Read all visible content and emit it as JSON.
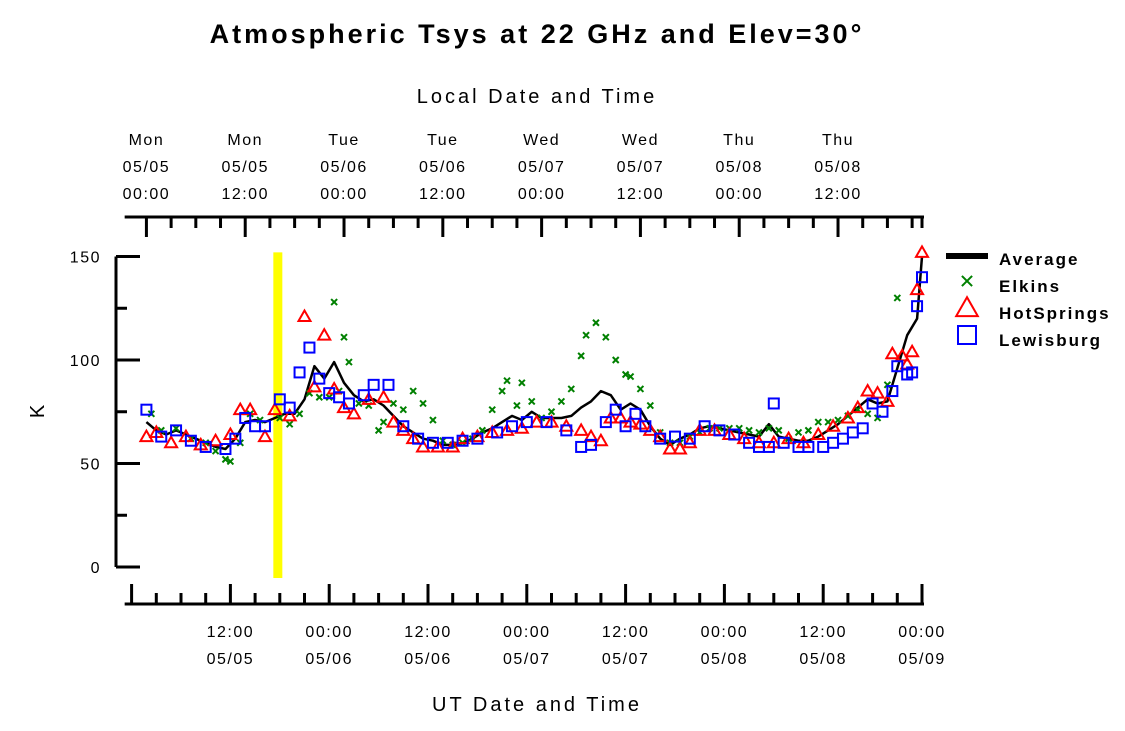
{
  "chart_data": {
    "type": "scatter",
    "title": "Atmospheric Tsys at 22 GHz and Elev=30°",
    "top_axis_label": "Local Date and Time",
    "xlabel": "UT Date and Time",
    "ylabel": "K",
    "ylim": [
      0,
      150
    ],
    "xlim": [
      -16.1,
      0
    ],
    "x_units": "hours relative to 05/09 00:00 UT",
    "y_ticks": [
      "0",
      "50",
      "100",
      "150"
    ],
    "bottom_ticks": [
      {
        "x": -14,
        "line1": "12:00",
        "line2": "05/05"
      },
      {
        "x": -12,
        "line1": "00:00",
        "line2": "05/06"
      },
      {
        "x": -10,
        "line1": "12:00",
        "line2": "05/06"
      },
      {
        "x": -8,
        "line1": "00:00",
        "line2": "05/07"
      },
      {
        "x": -6,
        "line1": "12:00",
        "line2": "05/07"
      },
      {
        "x": -4,
        "line1": "00:00",
        "line2": "05/08"
      },
      {
        "x": -2,
        "line1": "12:00",
        "line2": "05/08"
      },
      {
        "x": 0,
        "line1": "00:00",
        "line2": "05/09"
      }
    ],
    "top_ticks": [
      {
        "x": -15.7,
        "line1": "Mon",
        "line2": "05/05",
        "line3": "00:00"
      },
      {
        "x": -13.7,
        "line1": "Mon",
        "line2": "05/05",
        "line3": "12:00"
      },
      {
        "x": -11.7,
        "line1": "Tue",
        "line2": "05/06",
        "line3": "00:00"
      },
      {
        "x": -9.7,
        "line1": "Tue",
        "line2": "05/06",
        "line3": "12:00"
      },
      {
        "x": -7.7,
        "line1": "Wed",
        "line2": "05/07",
        "line3": "00:00"
      },
      {
        "x": -5.7,
        "line1": "Wed",
        "line2": "05/07",
        "line3": "12:00"
      },
      {
        "x": -3.7,
        "line1": "Thu",
        "line2": "05/08",
        "line3": "00:00"
      },
      {
        "x": -1.7,
        "line1": "Thu",
        "line2": "05/08",
        "line3": "12:00"
      }
    ],
    "highlight_x": -13.05,
    "highlight_color": "#ffff00",
    "legend_placement": "right",
    "series": [
      {
        "name": "Average",
        "marker": "line",
        "color": "#000000",
        "points": [
          [
            -15.7,
            70
          ],
          [
            -15.5,
            66
          ],
          [
            -15.3,
            64
          ],
          [
            -15.1,
            66
          ],
          [
            -14.9,
            64
          ],
          [
            -14.7,
            62
          ],
          [
            -14.5,
            60
          ],
          [
            -14.3,
            58
          ],
          [
            -14.1,
            57
          ],
          [
            -13.9,
            62
          ],
          [
            -13.7,
            70
          ],
          [
            -13.5,
            71
          ],
          [
            -13.3,
            70
          ],
          [
            -13.1,
            72
          ],
          [
            -12.9,
            74
          ],
          [
            -12.7,
            74
          ],
          [
            -12.5,
            81
          ],
          [
            -12.3,
            97
          ],
          [
            -12.1,
            91
          ],
          [
            -11.9,
            99
          ],
          [
            -11.7,
            89
          ],
          [
            -11.5,
            83
          ],
          [
            -11.3,
            80
          ],
          [
            -11.1,
            81
          ],
          [
            -10.9,
            78
          ],
          [
            -10.7,
            73
          ],
          [
            -10.5,
            68
          ],
          [
            -10.3,
            65
          ],
          [
            -10.1,
            62
          ],
          [
            -9.9,
            61
          ],
          [
            -9.7,
            59
          ],
          [
            -9.5,
            59
          ],
          [
            -9.3,
            60
          ],
          [
            -9.1,
            62
          ],
          [
            -8.9,
            65
          ],
          [
            -8.7,
            67
          ],
          [
            -8.5,
            70
          ],
          [
            -8.3,
            73
          ],
          [
            -8.1,
            71
          ],
          [
            -7.9,
            75
          ],
          [
            -7.7,
            72
          ],
          [
            -7.5,
            72
          ],
          [
            -7.3,
            72
          ],
          [
            -7.1,
            73
          ],
          [
            -6.9,
            77
          ],
          [
            -6.7,
            80
          ],
          [
            -6.5,
            85
          ],
          [
            -6.3,
            83
          ],
          [
            -6.1,
            76
          ],
          [
            -5.9,
            79
          ],
          [
            -5.7,
            76
          ],
          [
            -5.5,
            68
          ],
          [
            -5.3,
            62
          ],
          [
            -5.1,
            59
          ],
          [
            -4.9,
            62
          ],
          [
            -4.7,
            64
          ],
          [
            -4.5,
            67
          ],
          [
            -4.3,
            68
          ],
          [
            -4.1,
            67
          ],
          [
            -3.9,
            66
          ],
          [
            -3.7,
            65
          ],
          [
            -3.5,
            64
          ],
          [
            -3.3,
            63
          ],
          [
            -3.1,
            69
          ],
          [
            -2.9,
            63
          ],
          [
            -2.7,
            62
          ],
          [
            -2.5,
            61
          ],
          [
            -2.3,
            61
          ],
          [
            -2.1,
            63
          ],
          [
            -1.9,
            66
          ],
          [
            -1.7,
            69
          ],
          [
            -1.5,
            73
          ],
          [
            -1.3,
            77
          ],
          [
            -1.1,
            81
          ],
          [
            -0.9,
            79
          ],
          [
            -0.7,
            80
          ],
          [
            -0.5,
            96
          ],
          [
            -0.3,
            112
          ],
          [
            -0.1,
            120
          ],
          [
            0,
            150
          ]
        ]
      },
      {
        "name": "Elkins",
        "marker": "x",
        "color": "#008000",
        "points": [
          [
            -15.6,
            74
          ],
          [
            -15.4,
            66
          ],
          [
            -15.1,
            67
          ],
          [
            -14.8,
            62
          ],
          [
            -14.5,
            60
          ],
          [
            -14.3,
            56
          ],
          [
            -14.1,
            52
          ],
          [
            -14.0,
            51
          ],
          [
            -13.8,
            60
          ],
          [
            -13.6,
            74
          ],
          [
            -13.4,
            71
          ],
          [
            -13.0,
            72
          ],
          [
            -12.8,
            69
          ],
          [
            -12.6,
            74
          ],
          [
            -12.4,
            84
          ],
          [
            -12.2,
            82
          ],
          [
            -12.0,
            82
          ],
          [
            -11.9,
            128
          ],
          [
            -11.8,
            85
          ],
          [
            -11.7,
            111
          ],
          [
            -11.6,
            99
          ],
          [
            -11.4,
            79
          ],
          [
            -11.2,
            78
          ],
          [
            -11.0,
            66
          ],
          [
            -10.9,
            70
          ],
          [
            -10.7,
            79
          ],
          [
            -10.5,
            76
          ],
          [
            -10.3,
            85
          ],
          [
            -10.1,
            79
          ],
          [
            -9.9,
            71
          ],
          [
            -9.7,
            61
          ],
          [
            -9.5,
            59
          ],
          [
            -9.3,
            60
          ],
          [
            -9.1,
            62
          ],
          [
            -8.9,
            66
          ],
          [
            -8.7,
            76
          ],
          [
            -8.5,
            85
          ],
          [
            -8.4,
            90
          ],
          [
            -8.2,
            78
          ],
          [
            -8.1,
            89
          ],
          [
            -7.9,
            80
          ],
          [
            -7.7,
            72
          ],
          [
            -7.5,
            75
          ],
          [
            -7.3,
            80
          ],
          [
            -7.1,
            86
          ],
          [
            -6.9,
            102
          ],
          [
            -6.8,
            112
          ],
          [
            -6.6,
            118
          ],
          [
            -6.4,
            111
          ],
          [
            -6.2,
            100
          ],
          [
            -6.0,
            93
          ],
          [
            -5.9,
            92
          ],
          [
            -5.7,
            86
          ],
          [
            -5.5,
            78
          ],
          [
            -5.3,
            65
          ],
          [
            -5.1,
            60
          ],
          [
            -4.9,
            60
          ],
          [
            -4.7,
            63
          ],
          [
            -4.5,
            65
          ],
          [
            -4.3,
            67
          ],
          [
            -4.1,
            67
          ],
          [
            -3.9,
            67
          ],
          [
            -3.7,
            67
          ],
          [
            -3.5,
            66
          ],
          [
            -3.3,
            65
          ],
          [
            -3.1,
            67
          ],
          [
            -2.9,
            66
          ],
          [
            -2.7,
            62
          ],
          [
            -2.5,
            65
          ],
          [
            -2.3,
            66
          ],
          [
            -2.1,
            70
          ],
          [
            -1.9,
            70
          ],
          [
            -1.7,
            71
          ],
          [
            -1.5,
            73
          ],
          [
            -1.3,
            76
          ],
          [
            -1.1,
            74
          ],
          [
            -0.9,
            72
          ],
          [
            -0.7,
            88
          ],
          [
            -0.5,
            130
          ]
        ]
      },
      {
        "name": "HotSprings",
        "marker": "triangle",
        "color": "#ff0000",
        "points": [
          [
            -15.7,
            63
          ],
          [
            -15.5,
            65
          ],
          [
            -15.2,
            60
          ],
          [
            -14.9,
            63
          ],
          [
            -14.6,
            59
          ],
          [
            -14.3,
            61
          ],
          [
            -14.0,
            64
          ],
          [
            -13.8,
            76
          ],
          [
            -13.6,
            76
          ],
          [
            -13.3,
            63
          ],
          [
            -13.1,
            76
          ],
          [
            -12.8,
            73
          ],
          [
            -12.5,
            121
          ],
          [
            -12.3,
            87
          ],
          [
            -12.1,
            112
          ],
          [
            -11.9,
            86
          ],
          [
            -11.7,
            77
          ],
          [
            -11.5,
            74
          ],
          [
            -11.2,
            81
          ],
          [
            -10.9,
            82
          ],
          [
            -10.7,
            70
          ],
          [
            -10.5,
            66
          ],
          [
            -10.3,
            62
          ],
          [
            -10.1,
            58
          ],
          [
            -9.8,
            58
          ],
          [
            -9.5,
            58
          ],
          [
            -9.3,
            62
          ],
          [
            -9.0,
            63
          ],
          [
            -8.7,
            65
          ],
          [
            -8.4,
            66
          ],
          [
            -8.1,
            67
          ],
          [
            -7.8,
            70
          ],
          [
            -7.5,
            70
          ],
          [
            -7.2,
            68
          ],
          [
            -6.9,
            66
          ],
          [
            -6.7,
            63
          ],
          [
            -6.5,
            61
          ],
          [
            -6.3,
            72
          ],
          [
            -6.1,
            72
          ],
          [
            -5.9,
            70
          ],
          [
            -5.7,
            69
          ],
          [
            -5.5,
            66
          ],
          [
            -5.3,
            63
          ],
          [
            -5.1,
            57
          ],
          [
            -4.9,
            57
          ],
          [
            -4.7,
            60
          ],
          [
            -4.5,
            66
          ],
          [
            -4.2,
            66
          ],
          [
            -3.9,
            64
          ],
          [
            -3.6,
            62
          ],
          [
            -3.3,
            60
          ],
          [
            -3.0,
            60
          ],
          [
            -2.7,
            62
          ],
          [
            -2.4,
            60
          ],
          [
            -2.1,
            64
          ],
          [
            -1.8,
            68
          ],
          [
            -1.5,
            72
          ],
          [
            -1.3,
            77
          ],
          [
            -1.1,
            85
          ],
          [
            -0.9,
            84
          ],
          [
            -0.7,
            80
          ],
          [
            -0.6,
            103
          ],
          [
            -0.4,
            102
          ],
          [
            -0.3,
            98
          ],
          [
            -0.2,
            104
          ],
          [
            -0.1,
            134
          ],
          [
            0.0,
            152
          ]
        ]
      },
      {
        "name": "Lewisburg",
        "marker": "square",
        "color": "#0000ff",
        "points": [
          [
            -15.7,
            76
          ],
          [
            -15.4,
            63
          ],
          [
            -15.1,
            66
          ],
          [
            -14.8,
            61
          ],
          [
            -14.5,
            58
          ],
          [
            -14.1,
            57
          ],
          [
            -13.9,
            62
          ],
          [
            -13.7,
            72
          ],
          [
            -13.5,
            68
          ],
          [
            -13.3,
            68
          ],
          [
            -13.0,
            81
          ],
          [
            -12.8,
            77
          ],
          [
            -12.6,
            94
          ],
          [
            -12.4,
            106
          ],
          [
            -12.2,
            91
          ],
          [
            -12.0,
            84
          ],
          [
            -11.8,
            82
          ],
          [
            -11.6,
            79
          ],
          [
            -11.3,
            83
          ],
          [
            -11.1,
            88
          ],
          [
            -10.8,
            88
          ],
          [
            -10.5,
            68
          ],
          [
            -10.2,
            62
          ],
          [
            -9.9,
            60
          ],
          [
            -9.6,
            60
          ],
          [
            -9.3,
            61
          ],
          [
            -9.0,
            62
          ],
          [
            -8.6,
            65
          ],
          [
            -8.3,
            68
          ],
          [
            -8.0,
            70
          ],
          [
            -7.6,
            70
          ],
          [
            -7.2,
            66
          ],
          [
            -6.9,
            58
          ],
          [
            -6.7,
            59
          ],
          [
            -6.4,
            70
          ],
          [
            -6.2,
            76
          ],
          [
            -6.0,
            68
          ],
          [
            -5.8,
            74
          ],
          [
            -5.6,
            68
          ],
          [
            -5.3,
            62
          ],
          [
            -5.0,
            63
          ],
          [
            -4.7,
            62
          ],
          [
            -4.4,
            68
          ],
          [
            -4.1,
            66
          ],
          [
            -3.8,
            64
          ],
          [
            -3.5,
            60
          ],
          [
            -3.3,
            58
          ],
          [
            -3.1,
            58
          ],
          [
            -3.0,
            79
          ],
          [
            -2.8,
            60
          ],
          [
            -2.5,
            58
          ],
          [
            -2.3,
            58
          ],
          [
            -2.0,
            58
          ],
          [
            -1.8,
            60
          ],
          [
            -1.6,
            62
          ],
          [
            -1.4,
            65
          ],
          [
            -1.2,
            67
          ],
          [
            -1.0,
            79
          ],
          [
            -0.8,
            75
          ],
          [
            -0.6,
            85
          ],
          [
            -0.5,
            97
          ],
          [
            -0.3,
            93
          ],
          [
            -0.2,
            94
          ],
          [
            -0.1,
            126
          ],
          [
            0.0,
            140
          ]
        ]
      }
    ]
  }
}
